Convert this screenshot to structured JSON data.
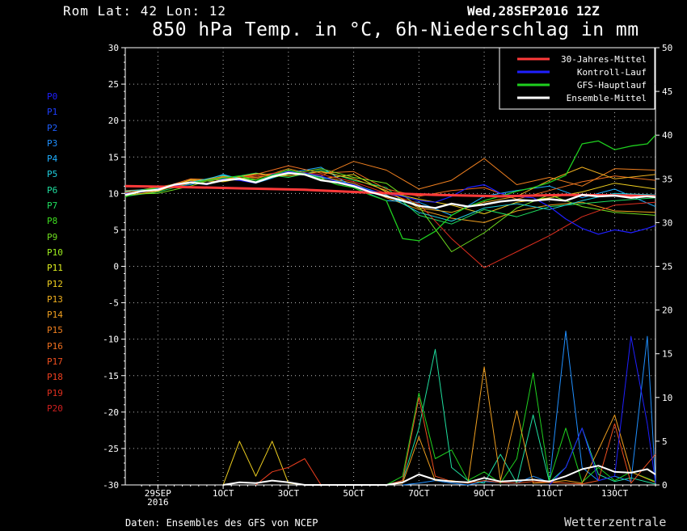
{
  "header": {
    "location": "Rom   Lat: 42 Lon: 12",
    "run": "Wed,28SEP2016 12Z",
    "title": "850 hPa Temp. in °C, 6h-Niederschlag in mm"
  },
  "footer": {
    "source": "Daten: Ensembles des GFS von NCEP",
    "brand": "Wetterzentrale"
  },
  "members": [
    {
      "label": "P0",
      "color": "#1f1fff"
    },
    {
      "label": "P1",
      "color": "#1f3fff"
    },
    {
      "label": "P2",
      "color": "#1f5fff"
    },
    {
      "label": "P3",
      "color": "#1f8fff"
    },
    {
      "label": "P4",
      "color": "#1fafff"
    },
    {
      "label": "P5",
      "color": "#1fcfdf"
    },
    {
      "label": "P6",
      "color": "#1fdf9f"
    },
    {
      "label": "P7",
      "color": "#1fdf5f"
    },
    {
      "label": "P8",
      "color": "#3fdf1f"
    },
    {
      "label": "P9",
      "color": "#6fdf1f"
    },
    {
      "label": "P10",
      "color": "#9fef1f"
    },
    {
      "label": "P11",
      "color": "#dfef1f"
    },
    {
      "label": "P12",
      "color": "#efcf1f"
    },
    {
      "label": "P13",
      "color": "#efaf1f"
    },
    {
      "label": "P14",
      "color": "#ef9f1f"
    },
    {
      "label": "P15",
      "color": "#ef7f1f"
    },
    {
      "label": "P16",
      "color": "#ef6f1f"
    },
    {
      "label": "P17",
      "color": "#ef4f1f"
    },
    {
      "label": "P18",
      "color": "#ef3f1f"
    },
    {
      "label": "P19",
      "color": "#df2f1f"
    },
    {
      "label": "P20",
      "color": "#cf1f1f"
    }
  ],
  "chart_data": {
    "type": "line",
    "x_ticks": [
      {
        "day": 1.5,
        "label": "29SEP",
        "sub": "2016"
      },
      {
        "day": 3.5,
        "label": "1OCT"
      },
      {
        "day": 5.5,
        "label": "3OCT"
      },
      {
        "day": 7.5,
        "label": "5OCT"
      },
      {
        "day": 9.5,
        "label": "7OCT"
      },
      {
        "day": 11.5,
        "label": "9OCT"
      },
      {
        "day": 13.5,
        "label": "11OCT"
      },
      {
        "day": 15.5,
        "label": "13OCT"
      }
    ],
    "x_range": [
      0.5,
      16.75
    ],
    "y_left": {
      "range": [
        -30,
        30
      ],
      "ticks": [
        30,
        25,
        20,
        15,
        10,
        5,
        0,
        -5,
        -10,
        -15,
        -20,
        -25,
        -30
      ]
    },
    "y_right": {
      "range": [
        0,
        50
      ],
      "ticks": [
        50,
        45,
        40,
        35,
        30,
        25,
        20,
        15,
        10,
        5,
        0
      ]
    },
    "grid": true,
    "legend": {
      "position": "top-right",
      "entries": [
        {
          "name": "30-Jahres-Mittel",
          "color": "#ff3a3a"
        },
        {
          "name": "Kontroll-Lauf",
          "color": "#1f1fff"
        },
        {
          "name": "GFS-Hauptlauf",
          "color": "#1fd01f"
        },
        {
          "name": "Ensemble-Mittel",
          "color": "#ffffff"
        }
      ]
    },
    "climatology_temp": {
      "x": [
        0.5,
        2,
        4,
        6,
        8,
        10,
        12,
        14,
        16,
        16.75
      ],
      "y": [
        11,
        10.9,
        10.7,
        10.5,
        10.1,
        9.8,
        9.6,
        9.8,
        9.7,
        9.6
      ]
    },
    "ensemble_mean_temp": {
      "x": [
        0.5,
        1,
        1.5,
        2,
        2.5,
        3,
        3.5,
        4,
        4.5,
        5,
        5.5,
        6,
        6.5,
        7,
        7.5,
        8,
        8.5,
        9,
        9.5,
        10,
        10.5,
        11,
        11.5,
        12,
        12.5,
        13,
        13.5,
        14,
        14.5,
        15,
        15.5,
        16,
        16.5,
        16.75
      ],
      "y": [
        9.8,
        10.3,
        10.5,
        11.2,
        11.5,
        11.3,
        11.8,
        12.0,
        11.5,
        12.3,
        12.8,
        12.6,
        11.8,
        11.5,
        11.0,
        10.2,
        9.6,
        9.0,
        8.3,
        8.0,
        8.6,
        8.2,
        8.5,
        8.9,
        9.1,
        9.0,
        9.2,
        9.0,
        9.8,
        9.6,
        9.7,
        9.4,
        9.6,
        9.5
      ]
    },
    "control_temp": {
      "x": [
        0.5,
        1,
        1.5,
        2,
        2.5,
        3,
        3.5,
        4,
        4.5,
        5,
        5.5,
        6,
        6.5,
        7,
        7.5,
        8,
        8.5,
        9,
        9.5,
        10,
        10.5,
        11,
        11.5,
        12,
        12.5,
        13,
        13.5,
        14,
        14.5,
        15,
        15.5,
        16,
        16.5,
        16.75
      ],
      "y": [
        10.0,
        10.2,
        10.6,
        11.0,
        11.6,
        11.2,
        12.0,
        11.8,
        11.4,
        12.6,
        13.0,
        12.8,
        12.4,
        11.6,
        11.2,
        10.4,
        10.0,
        9.6,
        9.0,
        8.8,
        9.6,
        10.8,
        11.2,
        10.0,
        9.6,
        9.4,
        8.2,
        6.5,
        5.2,
        4.4,
        5.0,
        4.6,
        5.2,
        5.6
      ]
    },
    "gfs_temp": {
      "x": [
        0.5,
        1,
        1.5,
        2,
        2.5,
        3,
        3.5,
        4,
        4.5,
        5,
        5.5,
        6,
        6.5,
        7,
        7.5,
        8,
        8.5,
        9,
        9.5,
        10,
        10.5,
        11,
        11.5,
        12,
        12.5,
        13,
        13.5,
        14,
        14.5,
        15,
        15.5,
        16,
        16.5,
        16.75
      ],
      "y": [
        9.5,
        10.4,
        10.8,
        11.2,
        11.4,
        11.8,
        12.1,
        12.4,
        11.8,
        12.5,
        13.2,
        12.7,
        12.0,
        11.2,
        10.8,
        9.8,
        9.0,
        3.8,
        3.5,
        4.8,
        7.0,
        8.2,
        9.0,
        9.6,
        10.3,
        10.8,
        11.5,
        12.5,
        16.8,
        17.2,
        16.0,
        16.5,
        16.8,
        18.0
      ]
    },
    "member_temp": [
      {
        "x": [
          0.5,
          1.5,
          2.5,
          3.5,
          4.5,
          5.5,
          6.5,
          7.5,
          8.5,
          9.5,
          10.5,
          11.5,
          12.5,
          13.5,
          14.5,
          15.5,
          16.75
        ],
        "y": [
          10.0,
          10.4,
          11.6,
          12.2,
          12.0,
          13.4,
          12.3,
          11.4,
          9.4,
          7.8,
          6.6,
          6.0,
          7.6,
          8.4,
          8.8,
          7.6,
          7.4
        ]
      },
      {
        "x": [
          0.5,
          1.5,
          2.5,
          3.5,
          4.5,
          5.5,
          6.5,
          7.5,
          8.5,
          9.5,
          10.5,
          11.5,
          12.5,
          13.5,
          14.5,
          15.5,
          16.75
        ],
        "y": [
          9.8,
          10.8,
          11.2,
          12.6,
          11.4,
          12.8,
          13.6,
          10.8,
          9.0,
          8.8,
          7.0,
          9.6,
          10.4,
          11.0,
          9.4,
          10.6,
          8.2
        ]
      },
      {
        "x": [
          0.5,
          1.5,
          2.5,
          3.5,
          4.5,
          5.5,
          6.5,
          7.5,
          8.5,
          9.5,
          10.5,
          11.5,
          12.5,
          13.5,
          14.5,
          15.5,
          16.75
        ],
        "y": [
          10.2,
          10.6,
          11.8,
          11.6,
          12.4,
          13.0,
          12.0,
          12.6,
          10.2,
          9.2,
          8.4,
          7.2,
          8.8,
          9.4,
          10.2,
          11.4,
          10.6
        ]
      },
      {
        "x": [
          0.5,
          1.5,
          2.5,
          3.5,
          4.5,
          5.5,
          6.5,
          7.5,
          8.5,
          9.5,
          10.5,
          11.5,
          12.5,
          13.5,
          14.5,
          15.5,
          16.75
        ],
        "y": [
          9.6,
          10.2,
          11.4,
          12.0,
          12.8,
          12.2,
          13.2,
          11.8,
          10.8,
          7.0,
          5.8,
          7.8,
          6.8,
          8.2,
          8.6,
          9.0,
          9.4
        ]
      },
      {
        "x": [
          0.5,
          1.5,
          2.5,
          3.5,
          4.5,
          5.5,
          6.5,
          7.5,
          8.5,
          9.5,
          10.5,
          11.5,
          12.5,
          13.5,
          14.5,
          15.5,
          16.75
        ],
        "y": [
          10.4,
          10.6,
          12.0,
          11.8,
          12.6,
          13.8,
          12.8,
          13.0,
          10.6,
          9.6,
          10.4,
          10.8,
          9.2,
          10.4,
          11.6,
          12.4,
          11.8
        ]
      },
      {
        "x": [
          0.5,
          1.5,
          2.5,
          3.5,
          4.5,
          5.5,
          6.5,
          7.5,
          8.5,
          9.5,
          10.5,
          11.5,
          12.5,
          13.5,
          14.5,
          15.5,
          16.75
        ],
        "y": [
          9.9,
          10.0,
          11.0,
          12.4,
          11.8,
          12.6,
          13.4,
          12.2,
          11.4,
          8.2,
          2.0,
          4.6,
          8.0,
          9.8,
          8.2,
          7.4,
          7.0
        ]
      },
      {
        "x": [
          0.5,
          1.5,
          2.5,
          3.5,
          4.5,
          5.5,
          6.5,
          7.5,
          8.5,
          9.5,
          10.5,
          11.5,
          12.5,
          13.5,
          14.5,
          15.5,
          16.75
        ],
        "y": [
          10.1,
          10.9,
          11.6,
          12.3,
          12.2,
          12.9,
          12.4,
          14.4,
          13.2,
          10.6,
          11.8,
          14.8,
          11.2,
          12.2,
          11.0,
          13.4,
          13.2
        ]
      },
      {
        "x": [
          0.5,
          1.5,
          2.5,
          3.5,
          4.5,
          5.5,
          6.5,
          7.5,
          8.5,
          9.5,
          10.5,
          11.5,
          12.5,
          13.5,
          14.5,
          15.5,
          16.75
        ],
        "y": [
          10.0,
          10.5,
          11.4,
          12.1,
          12.4,
          13.1,
          12.6,
          11.6,
          10.0,
          8.6,
          3.8,
          -0.2,
          2.0,
          4.2,
          6.8,
          8.4,
          8.8
        ]
      },
      {
        "x": [
          0.5,
          1.5,
          2.5,
          3.5,
          4.5,
          5.5,
          6.5,
          7.5,
          8.5,
          9.5,
          10.5,
          11.5,
          12.5,
          13.5,
          14.5,
          15.5,
          16.75
        ],
        "y": [
          9.7,
          10.3,
          11.9,
          11.9,
          12.7,
          12.4,
          13.0,
          12.0,
          10.4,
          8.0,
          7.4,
          8.8,
          9.6,
          11.8,
          13.6,
          12.0,
          12.6
        ]
      },
      {
        "x": [
          0.5,
          1.5,
          2.5,
          3.5,
          4.5,
          5.5,
          6.5,
          7.5,
          8.5,
          9.5,
          10.5,
          11.5,
          12.5,
          13.5,
          14.5,
          15.5,
          16.75
        ],
        "y": [
          10.3,
          10.7,
          11.5,
          12.5,
          11.6,
          13.2,
          12.2,
          11.2,
          9.8,
          7.4,
          6.2,
          8.0,
          8.6,
          7.8,
          9.0,
          10.0,
          9.8
        ]
      }
    ],
    "precip_series": [
      {
        "color": "#1f8fff",
        "x": [
          9.0,
          9.5,
          10.0,
          10.5,
          11.0,
          11.5,
          12.0,
          12.5,
          13.0,
          13.5,
          14.0,
          14.5,
          15.0,
          15.5,
          16.0,
          16.5,
          16.75
        ],
        "y": [
          0,
          0.2,
          0.5,
          0.2,
          0,
          0.4,
          0.3,
          0.2,
          1.0,
          0.3,
          17.6,
          2.0,
          0.5,
          1.0,
          0.4,
          17.0,
          0.2
        ]
      },
      {
        "color": "#1fd01f",
        "x": [
          8.5,
          9.0,
          9.5,
          10.0,
          10.5,
          11.0,
          11.5,
          12.0,
          12.5,
          13.0,
          13.5,
          14.0,
          14.5,
          15.0,
          15.5,
          16.0,
          16.75
        ],
        "y": [
          0,
          1.0,
          10.5,
          3.0,
          4.0,
          0.5,
          1.5,
          0.2,
          3.0,
          12.8,
          0.5,
          6.5,
          0.3,
          2.0,
          0.5,
          1.5,
          0.4
        ]
      },
      {
        "color": "#1fdf9f",
        "x": [
          8.5,
          9.0,
          9.5,
          10.0,
          10.5,
          11.0,
          11.5,
          12.0,
          12.5,
          13.0,
          13.5,
          14.0,
          14.5,
          15.0,
          15.5,
          16.0,
          16.75
        ],
        "y": [
          0,
          0.5,
          6.5,
          15.5,
          2.0,
          0.5,
          0.2,
          3.5,
          0.2,
          8.0,
          0.3,
          2.0,
          6.5,
          1.2,
          0.4,
          0.8,
          0.1
        ]
      },
      {
        "color": "#ef9f1f",
        "x": [
          8.5,
          9.0,
          9.5,
          10.0,
          10.5,
          11.0,
          11.5,
          12.0,
          12.5,
          13.0,
          13.5,
          14.0,
          14.5,
          15.0,
          15.5,
          16.0,
          16.75
        ],
        "y": [
          0,
          0.2,
          5.5,
          0.5,
          0.5,
          0.2,
          13.5,
          0.5,
          8.5,
          0.2,
          0.3,
          0.5,
          0.2,
          4.0,
          8.0,
          1.5,
          0.3
        ]
      },
      {
        "color": "#ef4f1f",
        "x": [
          8.5,
          9.0,
          9.5,
          10.0,
          10.5,
          11.0,
          11.5,
          12.0,
          12.5,
          13.0,
          13.5,
          14.0,
          14.5,
          15.0,
          15.5,
          16.0,
          16.75
        ],
        "y": [
          0,
          0.5,
          10.0,
          1.0,
          0.4,
          0.2,
          0.5,
          0.3,
          0.2,
          0.4,
          0.3,
          0.2,
          0.1,
          0.5,
          7.0,
          0.2,
          3.5
        ]
      },
      {
        "color": "#efcf1f",
        "x": [
          3.5,
          4.0,
          4.5,
          5.0,
          5.5,
          6.0
        ],
        "y": [
          0,
          5.0,
          1.0,
          5.0,
          0.2,
          0
        ]
      },
      {
        "color": "#ef3f1f",
        "x": [
          4.5,
          5.0,
          5.5,
          6.0,
          6.5
        ],
        "y": [
          0,
          1.5,
          2.0,
          3.0,
          0
        ]
      },
      {
        "color": "#1f1fff",
        "x": [
          13.5,
          14.0,
          14.5,
          15.0,
          15.5,
          16.0,
          16.5,
          16.75
        ],
        "y": [
          0,
          2.0,
          6.5,
          0.5,
          1.0,
          17.0,
          7.0,
          0.2
        ]
      }
    ],
    "precip_mean": {
      "x": [
        3.5,
        4.0,
        4.5,
        5.0,
        5.5,
        6.0,
        8.5,
        9.0,
        9.5,
        10.0,
        10.5,
        11.0,
        11.5,
        12.0,
        12.5,
        13.0,
        13.5,
        14.0,
        14.5,
        15.0,
        15.5,
        16.0,
        16.5,
        16.75
      ],
      "y": [
        0,
        0.3,
        0.2,
        0.5,
        0.3,
        0,
        0,
        0.3,
        1.2,
        0.6,
        0.4,
        0.3,
        0.8,
        0.4,
        0.5,
        0.6,
        0.4,
        1.0,
        1.8,
        2.2,
        1.5,
        1.4,
        1.8,
        1.2
      ]
    }
  }
}
